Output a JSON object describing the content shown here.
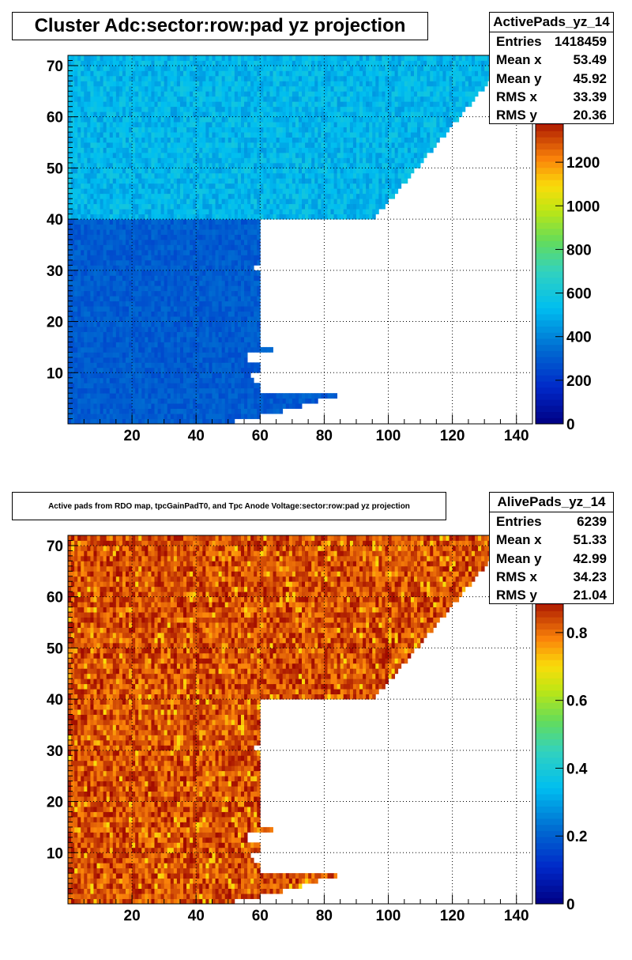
{
  "chart_data": [
    {
      "type": "heatmap",
      "title": "Cluster Adc:sector:row:pad yz projection",
      "histogram_name": "ActivePads_yz_14",
      "stats": [
        {
          "label": "Entries",
          "value": "1418459"
        },
        {
          "label": "Mean x",
          "value": "53.49"
        },
        {
          "label": "Mean y",
          "value": "45.92"
        },
        {
          "label": "RMS x",
          "value": "33.39"
        },
        {
          "label": "RMS y",
          "value": "20.36"
        }
      ],
      "xlim": [
        0,
        145
      ],
      "ylim": [
        0,
        72
      ],
      "x_ticks": [
        20,
        40,
        60,
        80,
        100,
        120,
        140
      ],
      "y_ticks": [
        10,
        20,
        30,
        40,
        50,
        60,
        70
      ],
      "z_range": [
        0,
        1400
      ],
      "z_ticks": [
        0,
        200,
        400,
        600,
        800,
        1000,
        1200
      ],
      "grid": true,
      "colormap": "rainbow",
      "typical_values": {
        "rows_1_40": 300,
        "rows_41_72": 520
      },
      "row_extent_pads": [
        {
          "rows": [
            1,
            40
          ],
          "max_pad": [
            52,
            60,
            67,
            73,
            78,
            84,
            60,
            60,
            58,
            57,
            60,
            60,
            56,
            56,
            64,
            60,
            60,
            60,
            60,
            60,
            60,
            60,
            60,
            60,
            60,
            60,
            60,
            60,
            60,
            60,
            58,
            60,
            60,
            60,
            60,
            60,
            60,
            60,
            60,
            60
          ]
        },
        {
          "rows": [
            41,
            72
          ],
          "max_pad": [
            96,
            97,
            99,
            100,
            102,
            103,
            104,
            106,
            107,
            108,
            110,
            111,
            112,
            114,
            115,
            116,
            118,
            119,
            120,
            122,
            123,
            124,
            126,
            127,
            128,
            130,
            131,
            132,
            134,
            135,
            136,
            138
          ]
        }
      ]
    },
    {
      "type": "heatmap",
      "title": "Active pads from RDO map, tpcGainPadT0,  and Tpc Anode Voltage:sector:row:pad yz projection",
      "histogram_name": "AlivePads_yz_14",
      "stats": [
        {
          "label": "Entries",
          "value": "6239"
        },
        {
          "label": "Mean x",
          "value": "51.33"
        },
        {
          "label": "Mean y",
          "value": "42.99"
        },
        {
          "label": "RMS x",
          "value": "34.23"
        },
        {
          "label": "RMS y",
          "value": "21.04"
        }
      ],
      "xlim": [
        0,
        145
      ],
      "ylim": [
        0,
        72
      ],
      "x_ticks": [
        20,
        40,
        60,
        80,
        100,
        120,
        140
      ],
      "y_ticks": [
        10,
        20,
        30,
        40,
        50,
        60,
        70
      ],
      "z_range": [
        0,
        0.9
      ],
      "z_ticks": [
        0,
        0.2,
        0.4,
        0.6,
        0.8
      ],
      "grid": true,
      "colormap": "rainbow",
      "typical_values": {
        "rows_1_40": 0.86,
        "rows_41_72": 0.86
      }
    }
  ]
}
